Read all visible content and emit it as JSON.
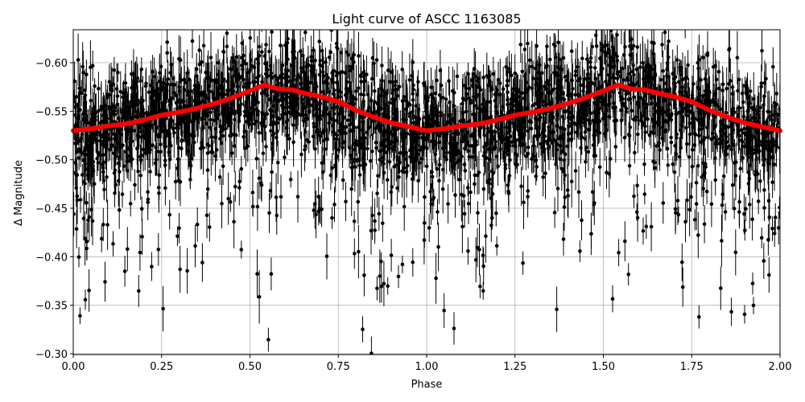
{
  "chart_data": {
    "type": "scatter",
    "title": "Light curve of ASCC 1163085",
    "xlabel": "Phase",
    "ylabel": "Δ Magnitude",
    "xlim": [
      0.0,
      2.0
    ],
    "ylim": [
      -0.3,
      -0.633
    ],
    "y_inverted": true,
    "grid": true,
    "x_ticks": [
      "0.00",
      "0.25",
      "0.50",
      "0.75",
      "1.00",
      "1.25",
      "1.50",
      "1.75",
      "2.00"
    ],
    "y_ticks": [
      "−0.60",
      "−0.55",
      "−0.50",
      "−0.45",
      "−0.40",
      "−0.35",
      "−0.30"
    ],
    "series": [
      {
        "name": "observations",
        "style": "black points with error bars",
        "color": "#000000",
        "description": "dense scatter of thousands of points, concentrated between -0.49 and -0.62, tail extending to -0.30"
      },
      {
        "name": "binned mean",
        "style": "red line of points",
        "color": "#ff0000",
        "x": [
          0.0,
          0.05,
          0.1,
          0.15,
          0.2,
          0.25,
          0.3,
          0.35,
          0.4,
          0.45,
          0.5,
          0.54,
          0.58,
          0.62,
          0.65,
          0.7,
          0.75,
          0.8,
          0.85,
          0.9,
          0.95,
          1.0,
          1.05,
          1.1,
          1.15,
          1.2,
          1.25,
          1.3,
          1.35,
          1.4,
          1.45,
          1.5,
          1.54,
          1.58,
          1.62,
          1.65,
          1.7,
          1.75,
          1.8,
          1.85,
          1.9,
          1.95,
          2.0
        ],
        "y": [
          -0.53,
          -0.532,
          -0.535,
          -0.537,
          -0.541,
          -0.546,
          -0.549,
          -0.553,
          -0.558,
          -0.564,
          -0.571,
          -0.577,
          -0.573,
          -0.572,
          -0.569,
          -0.565,
          -0.56,
          -0.551,
          -0.544,
          -0.538,
          -0.534,
          -0.53,
          -0.532,
          -0.535,
          -0.537,
          -0.541,
          -0.546,
          -0.549,
          -0.553,
          -0.558,
          -0.564,
          -0.571,
          -0.577,
          -0.573,
          -0.572,
          -0.569,
          -0.565,
          -0.56,
          -0.551,
          -0.544,
          -0.538,
          -0.534,
          -0.53
        ]
      }
    ]
  }
}
